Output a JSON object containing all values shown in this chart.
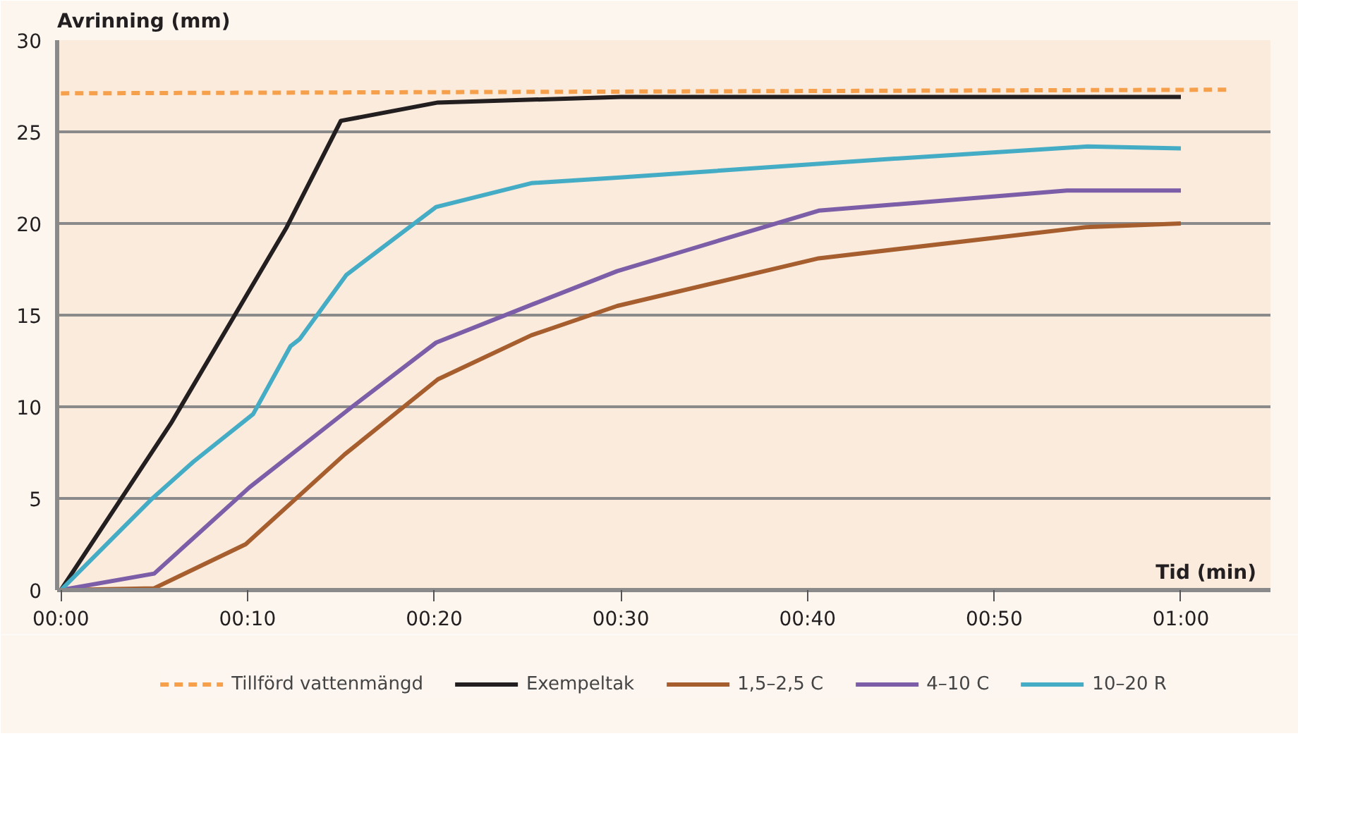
{
  "chart_data": {
    "type": "line",
    "xlabel": "Tid (min)",
    "ylabel": "Avrinning (mm)",
    "xlim": [
      -0.2,
      64.8
    ],
    "ylim": [
      0,
      30
    ],
    "xticks": [
      {
        "value": 0,
        "label": "00:00"
      },
      {
        "value": 10,
        "label": "00:10"
      },
      {
        "value": 20,
        "label": "00:20"
      },
      {
        "value": 30,
        "label": "00:30"
      },
      {
        "value": 40,
        "label": "00:40"
      },
      {
        "value": 50,
        "label": "00:50"
      },
      {
        "value": 60,
        "label": "01:00"
      }
    ],
    "yticks": [
      0,
      5,
      10,
      15,
      20,
      25,
      30
    ],
    "grid": "y",
    "legend": "bottom",
    "marker": "none",
    "series": [
      {
        "name": "Tillförd vattenmängd",
        "color": "#f7a04b",
        "line_style": "dashed",
        "x": [
          0,
          62.6
        ],
        "values": [
          27.1,
          27.3
        ]
      },
      {
        "name": "Exempeltak",
        "color": "#231f20",
        "line_style": "solid",
        "x": [
          0,
          5.9,
          12.1,
          15.0,
          20.2,
          30,
          60
        ],
        "values": [
          0,
          9.1,
          19.8,
          25.6,
          26.6,
          26.9,
          26.9
        ]
      },
      {
        "name": "1,5–2,5 C",
        "color": "#a65e2e",
        "line_style": "solid",
        "x": [
          0,
          5.0,
          9.9,
          15.2,
          20.2,
          25.2,
          29.8,
          40.6,
          54.9,
          60
        ],
        "values": [
          0,
          0.1,
          2.5,
          7.4,
          11.5,
          13.9,
          15.5,
          18.1,
          19.8,
          20.0
        ]
      },
      {
        "name": "4–10 C",
        "color": "#7b5ea7",
        "line_style": "solid",
        "x": [
          0,
          5.0,
          10.1,
          15.6,
          20.1,
          25.3,
          29.8,
          33.4,
          40.6,
          53.9,
          60
        ],
        "values": [
          0,
          0.9,
          5.6,
          10.0,
          13.5,
          15.6,
          17.4,
          18.5,
          20.7,
          21.8,
          21.8
        ]
      },
      {
        "name": "10–20 R",
        "color": "#45acc6",
        "line_style": "solid",
        "x": [
          0,
          4.8,
          7.1,
          10.3,
          12.3,
          12.8,
          15.3,
          20.1,
          25.2,
          29.8,
          44.1,
          55.0,
          60
        ],
        "values": [
          0,
          4.9,
          7.0,
          9.6,
          13.3,
          13.7,
          17.2,
          20.9,
          22.2,
          22.5,
          23.5,
          24.2,
          24.1
        ]
      }
    ]
  }
}
